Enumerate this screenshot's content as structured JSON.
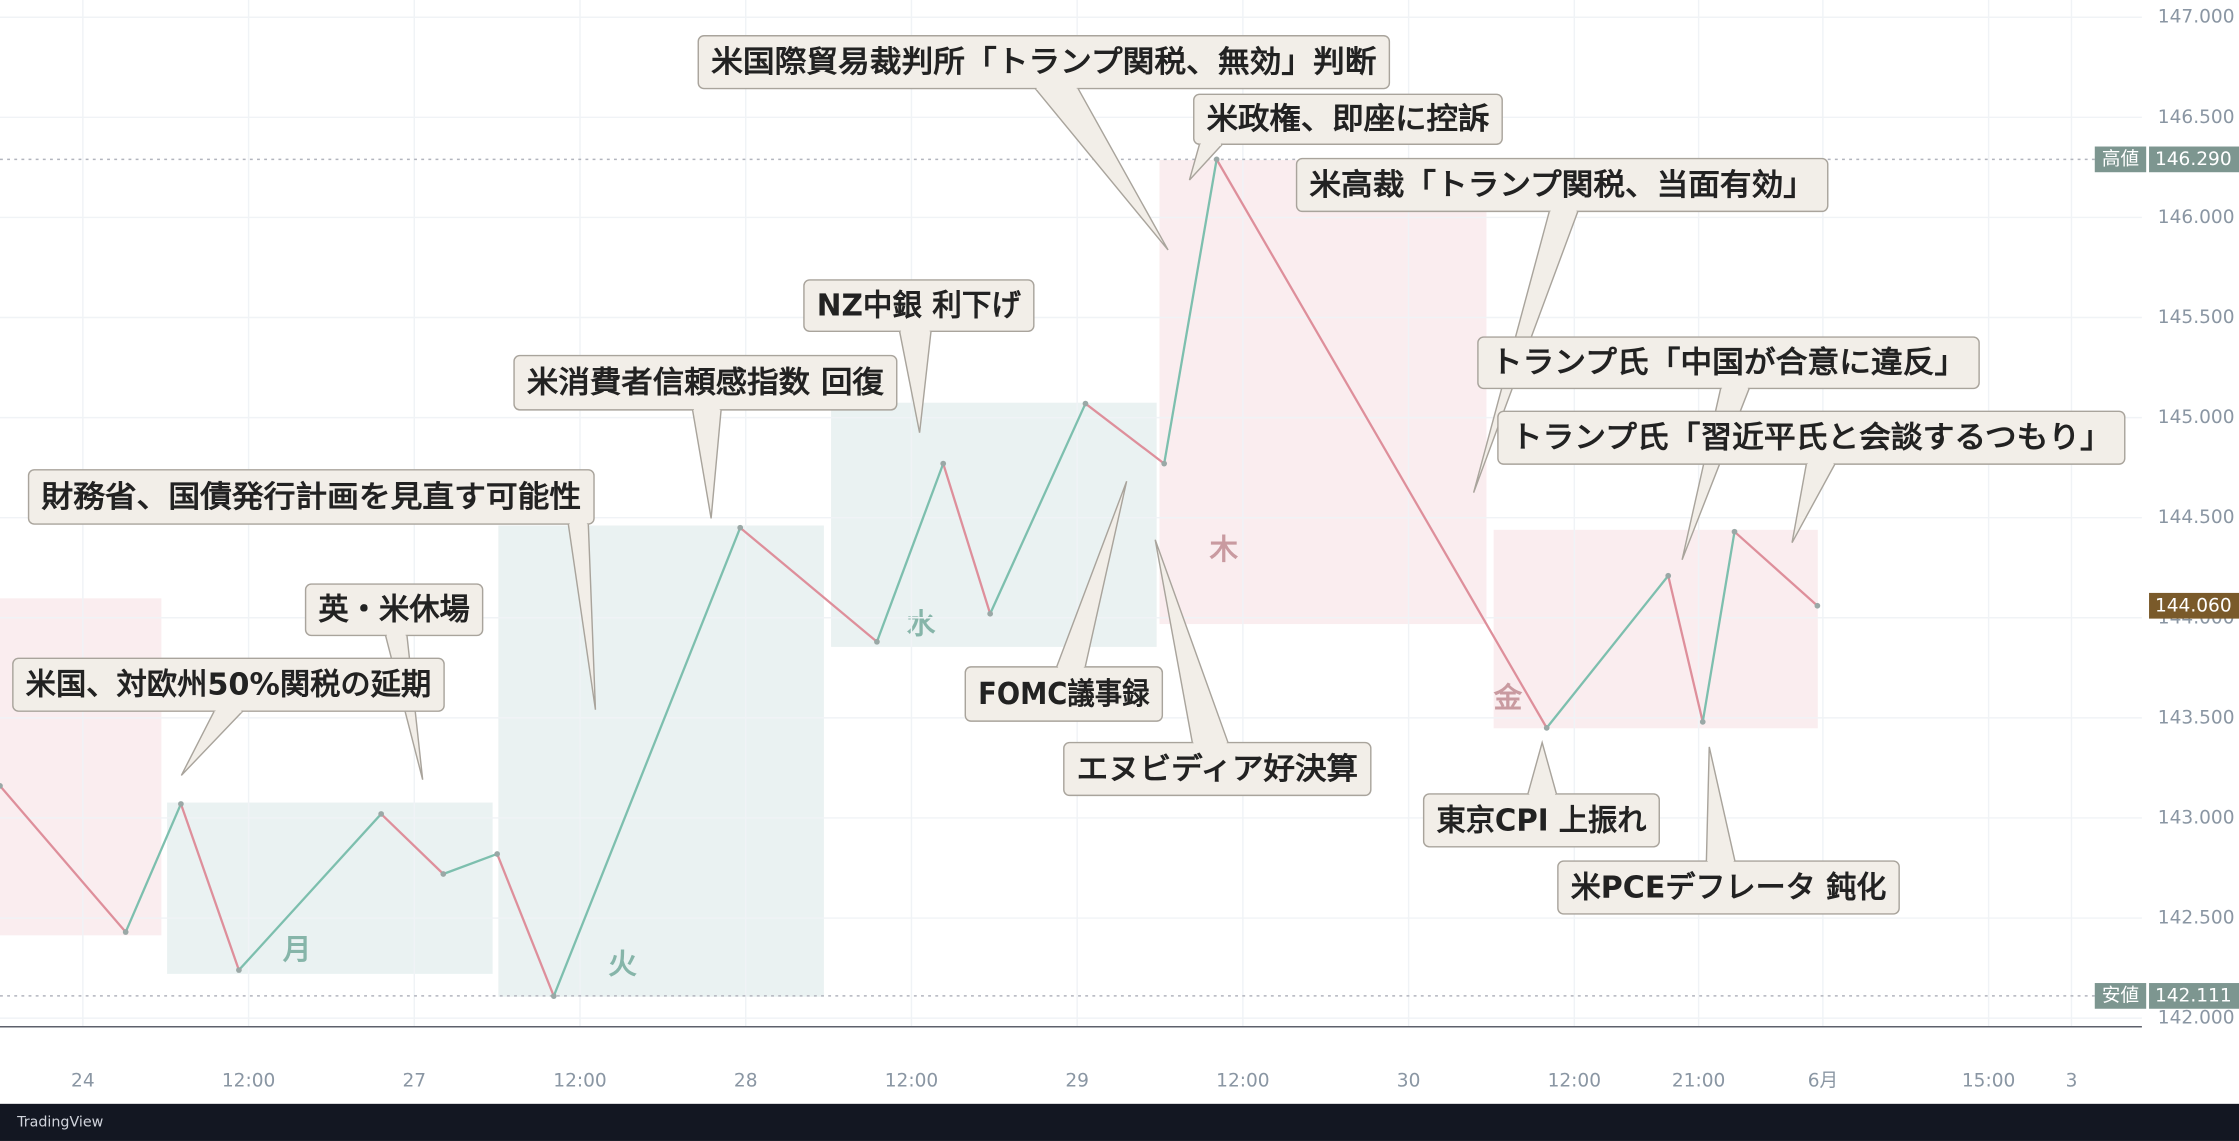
{
  "chart_data": {
    "type": "line",
    "x": [
      -6.0,
      3.1,
      7.1,
      11.3,
      21.6,
      26.1,
      30.0,
      34.1,
      47.6,
      57.5,
      62.3,
      65.7,
      72.6,
      78.3,
      82.1,
      106.0,
      114.8,
      117.3,
      119.6,
      125.6
    ],
    "values": [
      143.16,
      142.43,
      143.07,
      142.24,
      143.02,
      142.72,
      142.82,
      142.11,
      144.45,
      143.88,
      144.77,
      144.02,
      145.07,
      144.77,
      146.29,
      143.45,
      144.21,
      143.48,
      144.43,
      144.06
    ],
    "up_color": "#7dbfae",
    "down_color": "#de8f9b",
    "xlim": [
      -6,
      149.1
    ],
    "xticks": [
      {
        "value": 0,
        "label": "24"
      },
      {
        "value": 12,
        "label": "12:00"
      },
      {
        "value": 24,
        "label": "27"
      },
      {
        "value": 36,
        "label": "12:00"
      },
      {
        "value": 48,
        "label": "28"
      },
      {
        "value": 60,
        "label": "12:00"
      },
      {
        "value": 72,
        "label": "29"
      },
      {
        "value": 84,
        "label": "12:00"
      },
      {
        "value": 96,
        "label": "30"
      },
      {
        "value": 108,
        "label": "12:00"
      },
      {
        "value": 117,
        "label": "21:00"
      },
      {
        "value": 126,
        "label": "6月"
      },
      {
        "value": 138,
        "label": "15:00"
      },
      {
        "value": 144,
        "label": "3"
      }
    ],
    "ylim": [
      141.957,
      147.086
    ],
    "yticks": [
      {
        "value": 142,
        "label": "142.000"
      },
      {
        "value": 142.5,
        "label": "142.500"
      },
      {
        "value": 143,
        "label": "143.000"
      },
      {
        "value": 143.5,
        "label": "143.500"
      },
      {
        "value": 144,
        "label": "144.000"
      },
      {
        "value": 144.5,
        "label": "144.500"
      },
      {
        "value": 145,
        "label": "145.000"
      },
      {
        "value": 145.5,
        "label": "145.500"
      },
      {
        "value": 146,
        "label": "146.000"
      },
      {
        "value": 146.5,
        "label": "146.500"
      },
      {
        "value": 147,
        "label": "147.000"
      }
    ],
    "grid": true,
    "high": {
      "label": "高値",
      "value": 146.29,
      "value_label": "146.290"
    },
    "low": {
      "label": "安値",
      "value": 142.111,
      "value_label": "142.111"
    },
    "last": {
      "value": 144.06,
      "value_label": "144.060"
    },
    "day_labels": [
      "月",
      "火",
      "水",
      "木",
      "金"
    ],
    "annotations": [
      "米国際貿易裁判所「トランプ関税、無効」判断",
      "米政権、即座に控訴",
      "米高裁「トランプ関税、当面有効」",
      "NZ中銀 利下げ",
      "米消費者信頼感指数 回復",
      "財務省、国債発行計画を見直す可能性",
      "英・米休場",
      "米国、対欧州50%関税の延期",
      "FOMC議事録",
      "エヌビディア好決算",
      "トランプ氏「中国が合意に違反」",
      "トランプ氏「習近平氏と会談するつもり」",
      "東京CPI 上振れ",
      "米PCEデフレータ 鈍化"
    ]
  },
  "footer": "TradingView"
}
